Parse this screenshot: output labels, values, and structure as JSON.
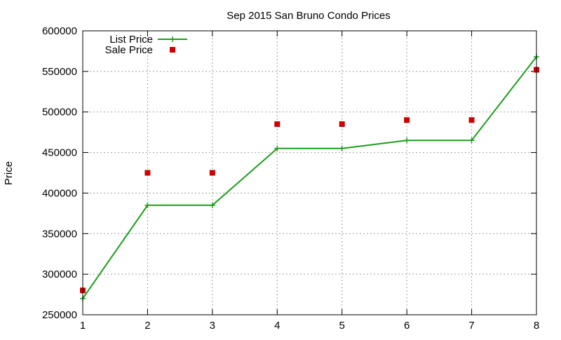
{
  "chart_data": {
    "type": "line",
    "title": "Sep 2015 San Bruno Condo Prices",
    "xlabel": "",
    "ylabel": "Price",
    "x": [
      1,
      2,
      3,
      4,
      5,
      6,
      7,
      8
    ],
    "xlim": [
      1,
      8
    ],
    "ylim": [
      250000,
      600000
    ],
    "yticks": [
      250000,
      300000,
      350000,
      400000,
      450000,
      500000,
      550000,
      600000
    ],
    "grid": true,
    "legend_position": "top-left",
    "series": [
      {
        "name": "List Price",
        "style": "line-points",
        "color": "#1a9e1a",
        "marker": "plus",
        "values": [
          270000,
          385000,
          385000,
          455000,
          455000,
          465000,
          465000,
          568000
        ]
      },
      {
        "name": "Sale Price",
        "style": "points",
        "color": "#cc0000",
        "marker": "square",
        "values": [
          280000,
          425000,
          425000,
          485000,
          485000,
          490000,
          490000,
          552000
        ]
      }
    ]
  }
}
